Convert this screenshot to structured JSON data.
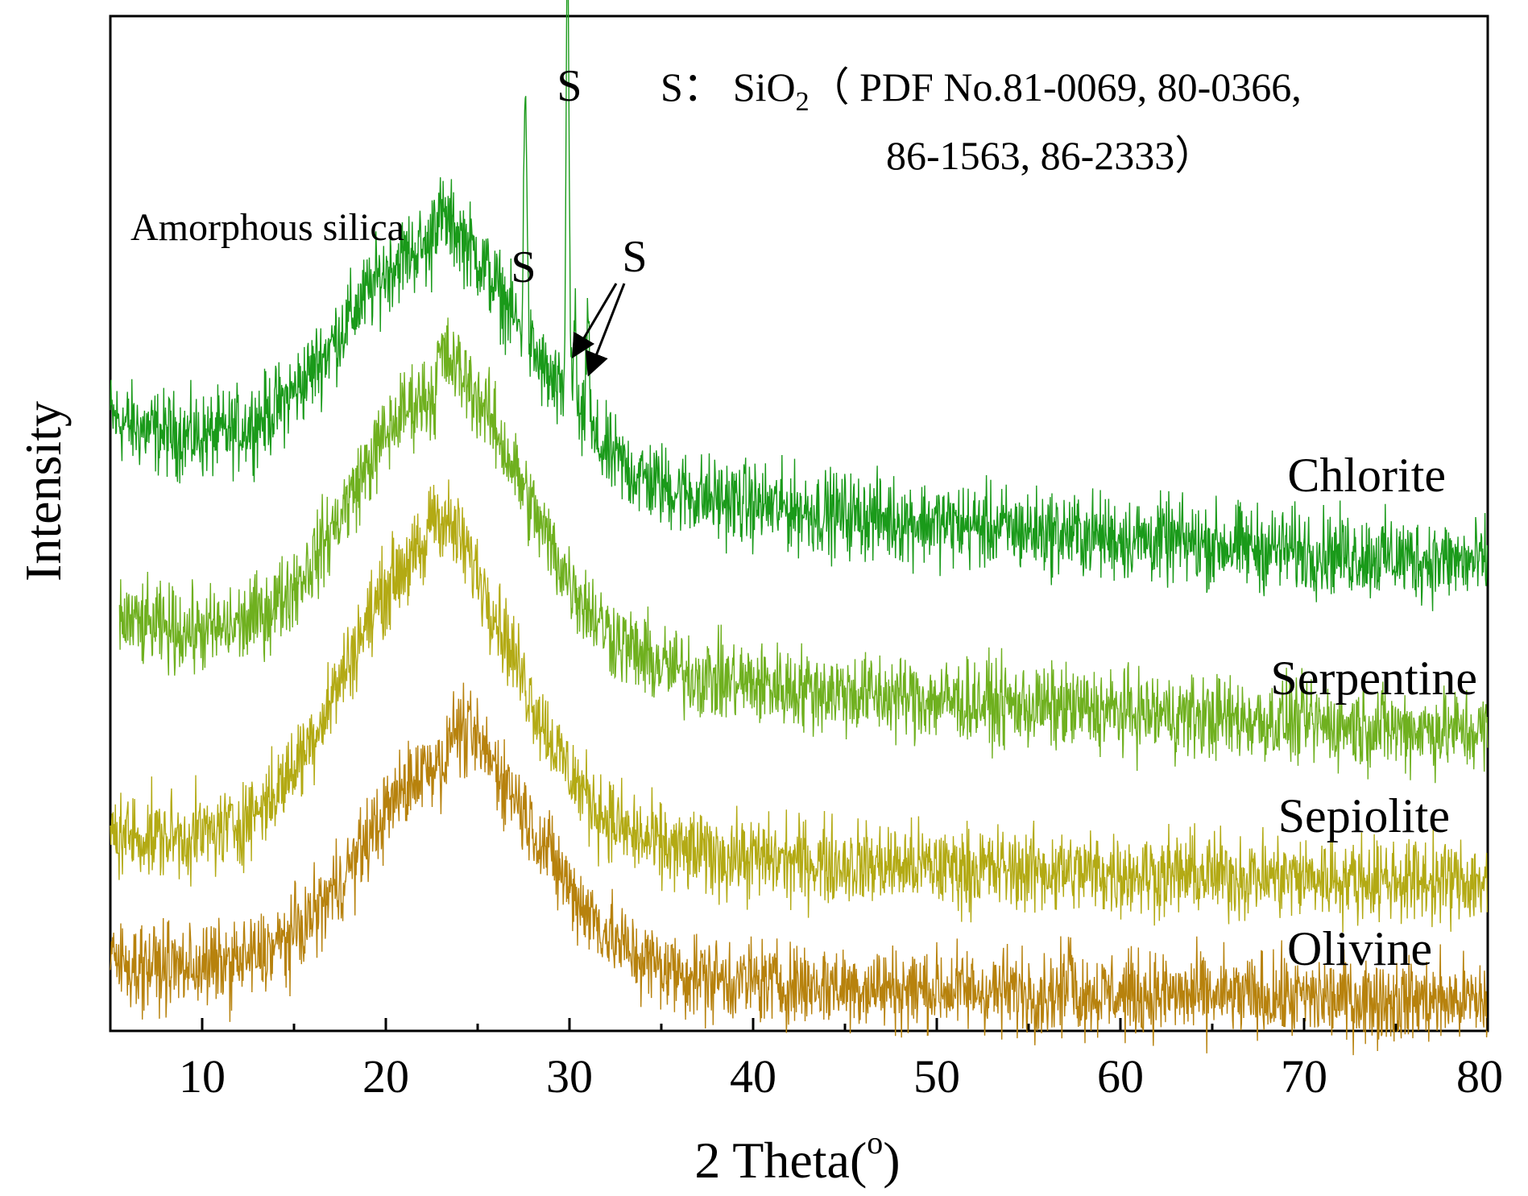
{
  "chart_data": {
    "type": "line",
    "title": "",
    "xlabel": "2 Theta(",
    "xlabel_sup": "o",
    "xlabel_close": ")",
    "ylabel": "Intensity",
    "xlim": [
      5,
      80
    ],
    "x_major_ticks": [
      10,
      20,
      30,
      40,
      50,
      60,
      70,
      80
    ],
    "x_tick_labels": [
      "10",
      "20",
      "30",
      "40",
      "50",
      "60",
      "70",
      "80"
    ],
    "x_minor_ticks": [
      15,
      25,
      35,
      45,
      55,
      65,
      75
    ],
    "y_ticks_shown": false,
    "grid": false,
    "series": [
      {
        "name": "Chlorite",
        "color": "#1a9a1a",
        "x_start": 5,
        "baseline_start": 62,
        "baseline_end": 47,
        "hump": {
          "center": 22.5,
          "width": 4.8,
          "height": 23
        },
        "noise": 5,
        "sharp_peaks": [
          {
            "x": 27.6,
            "height": 27
          },
          {
            "x": 29.9,
            "height": 48
          },
          {
            "x": 30.3,
            "height": 10
          },
          {
            "x": 31.0,
            "height": 13
          }
        ]
      },
      {
        "name": "Serpentine",
        "color": "#6fb01f",
        "x_start": 5.5,
        "baseline_start": 42,
        "baseline_end": 30,
        "hump": {
          "center": 22.8,
          "width": 4.6,
          "height": 27
        },
        "noise": 5,
        "sharp_peaks": []
      },
      {
        "name": "Sepiolite",
        "color": "#b3aa14",
        "x_start": 5,
        "baseline_start": 20,
        "baseline_end": 15,
        "hump": {
          "center": 22.3,
          "width": 4.5,
          "height": 30
        },
        "noise": 5,
        "sharp_peaks": []
      },
      {
        "name": "Olivine",
        "color": "#b7820d",
        "x_start": 5,
        "baseline_start": 7,
        "baseline_end": 3,
        "hump": {
          "center": 23.5,
          "width": 4.6,
          "height": 22
        },
        "noise": 5,
        "sharp_peaks": [
          {
            "x": 57.3,
            "height": 6
          }
        ]
      }
    ],
    "annotations": {
      "amorphous_label": "Amorphous silica",
      "peak_marker": "S",
      "legend_prefix": "S：",
      "legend_formula": "SiO",
      "legend_subscript": "2",
      "legend_line1": "（ PDF No.81-0069, 80-0366,",
      "legend_line2": "86-1563, 86-2333）"
    }
  }
}
